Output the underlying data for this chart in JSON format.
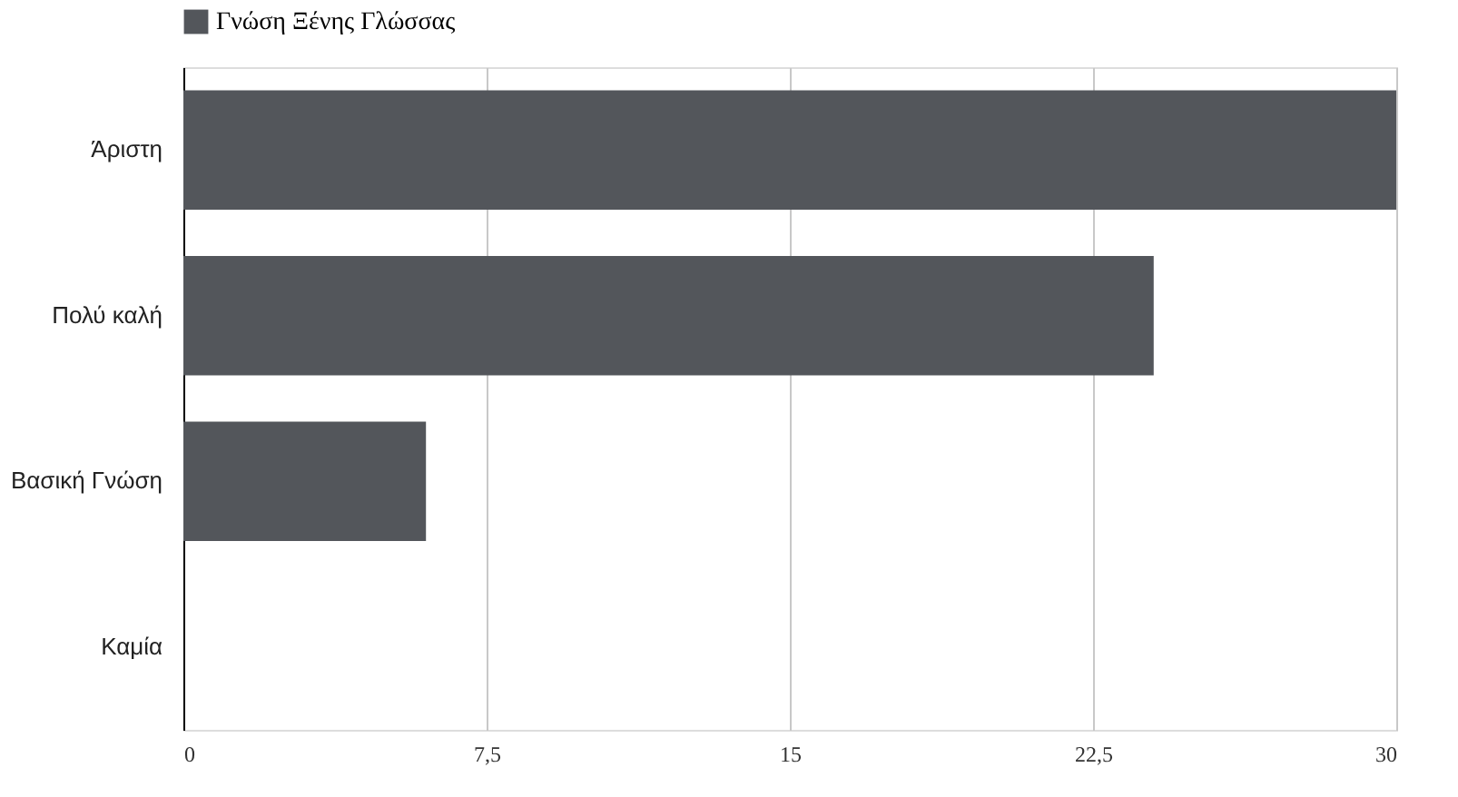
{
  "chart_data": {
    "type": "bar",
    "orientation": "horizontal",
    "categories": [
      "Άριστη",
      "Πολύ καλή",
      "Βασική Γνώση",
      "Καμία"
    ],
    "series": [
      {
        "name": "Γνώση Ξένης Γλώσσας",
        "color": "#53565b",
        "values": [
          30,
          24,
          6,
          0
        ]
      }
    ],
    "xlim": [
      0,
      30
    ],
    "xticks": [
      0,
      {
        "value": 7.5,
        "label": "7,5"
      },
      15,
      {
        "value": 22.5,
        "label": "22,5"
      },
      30
    ],
    "grid": "x",
    "legend": "top"
  }
}
